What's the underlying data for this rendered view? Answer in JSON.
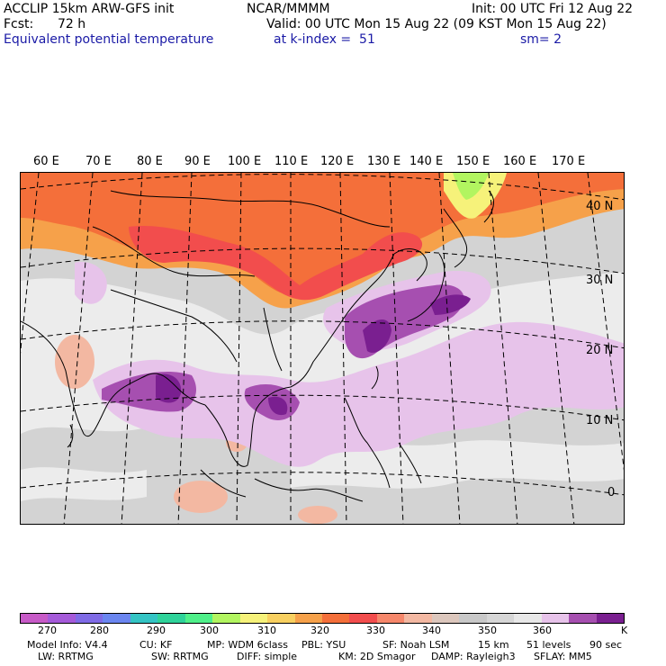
{
  "header": {
    "model": "ACCLIP 15km ARW-GFS init",
    "org": "NCAR/MMMM",
    "init": "Init: 00 UTC Fri 12 Aug 22",
    "fcst_label": "Fcst:",
    "fcst_value": "72 h",
    "valid": "Valid: 00 UTC Mon 15 Aug 22 (09 KST Mon 15 Aug 22)",
    "field": "Equivalent potential temperature",
    "level": "at k-index =  51",
    "smoothing": "sm= 2"
  },
  "map": {
    "lon_labels": [
      "60 E",
      "70 E",
      "80 E",
      "90 E",
      "100 E",
      "110 E",
      "120 E",
      "130 E",
      "140 E",
      "150 E",
      "160 E",
      "170 E"
    ],
    "lat_labels": [
      "40 N",
      "30 N",
      "20 N",
      "10 N",
      "0"
    ]
  },
  "colorbar": {
    "colors": [
      "#c75ac7",
      "#a55ad9",
      "#7f6be6",
      "#6b86f0",
      "#34c4c4",
      "#2fd39a",
      "#4ff08a",
      "#b2f560",
      "#f6f27a",
      "#f8d060",
      "#f6a14a",
      "#f46f3a",
      "#f24d4d",
      "#f6876b",
      "#f3b8a2",
      "#dcc7bd",
      "#c8c8c8",
      "#d6d6d6",
      "#e8e8e8",
      "#e7c3ea",
      "#a64fb0",
      "#7a1f90"
    ],
    "labels": [
      "270",
      "280",
      "290",
      "300",
      "310",
      "320",
      "330",
      "340",
      "350",
      "360"
    ],
    "unit": "K"
  },
  "footer": {
    "line1": [
      "Model Info: V4.4",
      "CU: KF",
      "MP: WDM 6class",
      "PBL: YSU",
      "SF: Noah LSM",
      "15 km",
      "51 levels",
      "90 sec"
    ],
    "line2": [
      "LW: RRTMG",
      "SW: RRTMG",
      "DIFF: simple",
      "KM: 2D Smagor",
      "DAMP: Rayleigh3",
      "SFLAY: MM5"
    ]
  }
}
